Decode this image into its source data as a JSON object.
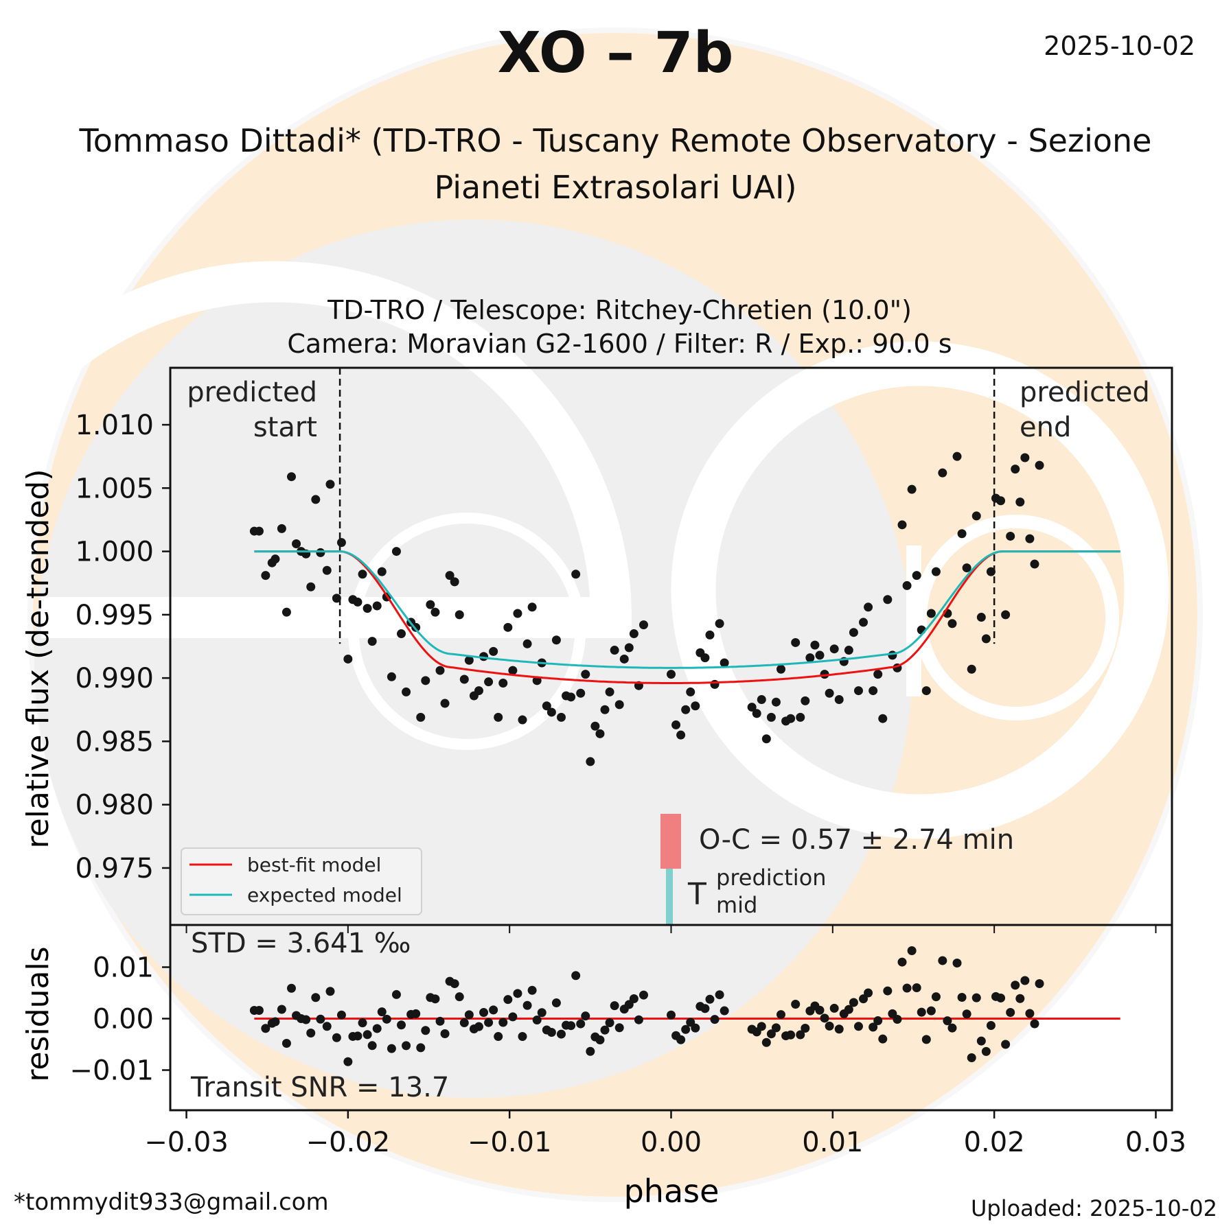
{
  "header": {
    "title": "XO – 7b",
    "date": "2025-10-02",
    "author_line1": "Tommaso Dittadi* (TD-TRO - Tuscany Remote Observatory - Sezione",
    "author_line2": "Pianeti Extrasolari UAI)",
    "subtitle_line1": "TD-TRO / Telescope: Ritchey-Chretien (10.0\")",
    "subtitle_line2": "Camera: Moravian G2-1600 / Filter: R / Exp.: 90.0 s"
  },
  "footer": {
    "email": "*tommydit933@gmail.com",
    "uploaded": "Uploaded: 2025-10-02"
  },
  "colors": {
    "best_fit": "#ee1111",
    "expected": "#1fb8b8",
    "points": "#151515",
    "oc_bar": "#f08080",
    "prediction_bar": "#80d0d0",
    "watermark_orange": "#fdebd3",
    "watermark_grey": "#efefef"
  },
  "chart_data": [
    {
      "type": "scatter",
      "panel": "light-curve",
      "ylabel": "relative flux (de-trended)",
      "xlabel": "phase",
      "xlim": [
        -0.031,
        0.031
      ],
      "ylim": [
        0.9705,
        1.0145
      ],
      "yticks": [
        0.975,
        0.98,
        0.985,
        0.99,
        0.995,
        1.0,
        1.005,
        1.01
      ],
      "ytick_labels": [
        "0.975",
        "0.980",
        "0.985",
        "0.990",
        "0.995",
        "1.000",
        "1.005",
        "1.010"
      ],
      "legend": {
        "placement": "lower-left",
        "entries": [
          "best-fit model",
          "expected model"
        ]
      },
      "annotations": {
        "predicted_start": "predicted\nstart",
        "predicted_end": "predicted\nend",
        "predicted_start_phase": -0.0205,
        "predicted_end_phase": 0.02,
        "oc_text": "O-C = 0.57 ± 2.74 min",
        "tmid_label": "T",
        "tmid_sup": "prediction",
        "tmid_sub": "mid"
      },
      "models": {
        "depth_best_fit": 0.0104,
        "depth_expected": 0.0092,
        "t14_half": 0.0205,
        "ingress": 0.0069,
        "phase_range": [
          -0.0258,
          0.0278
        ]
      },
      "points": [
        [
          -0.0258,
          1.0016
        ],
        [
          -0.0255,
          1.0016
        ],
        [
          -0.0251,
          0.9981
        ],
        [
          -0.0247,
          0.9991
        ],
        [
          -0.0245,
          0.9994
        ],
        [
          -0.0241,
          1.0018
        ],
        [
          -0.0238,
          0.9952
        ],
        [
          -0.0235,
          1.0059
        ],
        [
          -0.0232,
          1.0006
        ],
        [
          -0.0229,
          1.0
        ],
        [
          -0.0226,
          0.9998
        ],
        [
          -0.0223,
          0.9972
        ],
        [
          -0.022,
          1.0041
        ],
        [
          -0.0217,
          0.9999
        ],
        [
          -0.0213,
          0.9985
        ],
        [
          -0.0211,
          1.0053
        ],
        [
          -0.0207,
          0.9963
        ],
        [
          -0.0204,
          1.0007
        ],
        [
          -0.02,
          0.9915
        ],
        [
          -0.0197,
          0.9962
        ],
        [
          -0.0194,
          0.996
        ],
        [
          -0.0191,
          0.9982
        ],
        [
          -0.0188,
          0.9955
        ],
        [
          -0.0185,
          0.9929
        ],
        [
          -0.0182,
          0.9957
        ],
        [
          -0.0179,
          0.9984
        ],
        [
          -0.0176,
          0.9964
        ],
        [
          -0.0173,
          0.9901
        ],
        [
          -0.017,
          1.0
        ],
        [
          -0.0167,
          0.9935
        ],
        [
          -0.0164,
          0.9889
        ],
        [
          -0.0161,
          0.9944
        ],
        [
          -0.0158,
          0.994
        ],
        [
          -0.0155,
          0.9869
        ],
        [
          -0.0152,
          0.9898
        ],
        [
          -0.0149,
          0.9958
        ],
        [
          -0.0146,
          0.9952
        ],
        [
          -0.0143,
          0.9906
        ],
        [
          -0.014,
          0.988
        ],
        [
          -0.0137,
          0.9981
        ],
        [
          -0.0134,
          0.9976
        ],
        [
          -0.0131,
          0.995
        ],
        [
          -0.0128,
          0.9899
        ],
        [
          -0.0125,
          0.9914
        ],
        [
          -0.0122,
          0.9886
        ],
        [
          -0.0119,
          0.989
        ],
        [
          -0.0116,
          0.9917
        ],
        [
          -0.0113,
          0.9897
        ],
        [
          -0.011,
          0.9921
        ],
        [
          -0.0107,
          0.9869
        ],
        [
          -0.0104,
          0.9896
        ],
        [
          -0.0101,
          0.994
        ],
        [
          -0.0098,
          0.9906
        ],
        [
          -0.0095,
          0.9951
        ],
        [
          -0.0092,
          0.9867
        ],
        [
          -0.0089,
          0.9927
        ],
        [
          -0.0086,
          0.9956
        ],
        [
          -0.0083,
          0.9898
        ],
        [
          -0.008,
          0.9912
        ],
        [
          -0.0077,
          0.9878
        ],
        [
          -0.0074,
          0.9873
        ],
        [
          -0.0071,
          0.993
        ],
        [
          -0.0068,
          0.9869
        ],
        [
          -0.0065,
          0.9886
        ],
        [
          -0.0062,
          0.9885
        ],
        [
          -0.0059,
          0.9982
        ],
        [
          -0.0056,
          0.9888
        ],
        [
          -0.0053,
          0.9903
        ],
        [
          -0.005,
          0.9834
        ],
        [
          -0.0047,
          0.9862
        ],
        [
          -0.0044,
          0.9856
        ],
        [
          -0.0041,
          0.9875
        ],
        [
          -0.0038,
          0.9889
        ],
        [
          -0.0035,
          0.9922
        ],
        [
          -0.0032,
          0.9879
        ],
        [
          -0.0029,
          0.9915
        ],
        [
          -0.0026,
          0.9924
        ],
        [
          -0.0023,
          0.9935
        ],
        [
          -0.002,
          0.9894
        ],
        [
          -0.0017,
          0.9942
        ],
        [
          0.0,
          0.9903
        ],
        [
          0.0003,
          0.9863
        ],
        [
          0.0006,
          0.9855
        ],
        [
          0.0009,
          0.9875
        ],
        [
          0.0012,
          0.9889
        ],
        [
          0.0015,
          0.9878
        ],
        [
          0.0018,
          0.992
        ],
        [
          0.0021,
          0.9916
        ],
        [
          0.0024,
          0.9934
        ],
        [
          0.0027,
          0.9895
        ],
        [
          0.003,
          0.9943
        ],
        [
          0.0033,
          0.9912
        ],
        [
          0.005,
          0.9877
        ],
        [
          0.0053,
          0.9872
        ],
        [
          0.0056,
          0.9883
        ],
        [
          0.0059,
          0.9852
        ],
        [
          0.0062,
          0.9869
        ],
        [
          0.0065,
          0.9881
        ],
        [
          0.0068,
          0.9907
        ],
        [
          0.0071,
          0.9866
        ],
        [
          0.0074,
          0.9868
        ],
        [
          0.0077,
          0.9928
        ],
        [
          0.008,
          0.9869
        ],
        [
          0.0083,
          0.9882
        ],
        [
          0.0086,
          0.9916
        ],
        [
          0.0089,
          0.9926
        ],
        [
          0.0092,
          0.9918
        ],
        [
          0.0095,
          0.9903
        ],
        [
          0.0098,
          0.9888
        ],
        [
          0.0101,
          0.9923
        ],
        [
          0.0104,
          0.9883
        ],
        [
          0.0107,
          0.9913
        ],
        [
          0.011,
          0.9922
        ],
        [
          0.0113,
          0.9936
        ],
        [
          0.0116,
          0.989
        ],
        [
          0.0119,
          0.9944
        ],
        [
          0.0122,
          0.9956
        ],
        [
          0.0125,
          0.989
        ],
        [
          0.0128,
          0.9903
        ],
        [
          0.0131,
          0.9868
        ],
        [
          0.0134,
          0.9962
        ],
        [
          0.0137,
          0.9918
        ],
        [
          0.014,
          0.9908
        ],
        [
          0.0143,
          1.0021
        ],
        [
          0.0146,
          0.9973
        ],
        [
          0.0149,
          1.0049
        ],
        [
          0.0152,
          0.9981
        ],
        [
          0.0155,
          0.9938
        ],
        [
          0.0158,
          0.989
        ],
        [
          0.0161,
          0.9951
        ],
        [
          0.0164,
          0.9984
        ],
        [
          0.0168,
          1.0062
        ],
        [
          0.0171,
          0.9951
        ],
        [
          0.0174,
          0.9943
        ],
        [
          0.0177,
          1.0075
        ],
        [
          0.018,
          1.0014
        ],
        [
          0.0183,
          0.9987
        ],
        [
          0.0186,
          0.9907
        ],
        [
          0.0189,
          1.0028
        ],
        [
          0.0192,
          0.9948
        ],
        [
          0.0195,
          0.9931
        ],
        [
          0.0198,
          0.9984
        ],
        [
          0.0201,
          1.0042
        ],
        [
          0.0204,
          1.004
        ],
        [
          0.0207,
          0.995
        ],
        [
          0.021,
          1.0012
        ],
        [
          0.0213,
          1.0065
        ],
        [
          0.0216,
          1.0039
        ],
        [
          0.0219,
          1.0074
        ],
        [
          0.0222,
          1.001
        ],
        [
          0.0225,
          0.999
        ],
        [
          0.0228,
          1.0068
        ]
      ]
    },
    {
      "type": "scatter",
      "panel": "residuals",
      "ylabel": "residuals",
      "ylim": [
        -0.0178,
        0.0182
      ],
      "yticks": [
        -0.01,
        0.0,
        0.01
      ],
      "ytick_labels": [
        "−0.01",
        "0.00",
        "0.01"
      ],
      "xticks": [
        -0.03,
        -0.02,
        -0.01,
        0.0,
        0.01,
        0.02,
        0.03
      ],
      "xtick_labels": [
        "−0.03",
        "−0.02",
        "−0.01",
        "0.00",
        "0.01",
        "0.02",
        "0.03"
      ],
      "std_text": "STD = 3.641 ‰",
      "snr_text": "Transit SNR = 13.7"
    }
  ]
}
